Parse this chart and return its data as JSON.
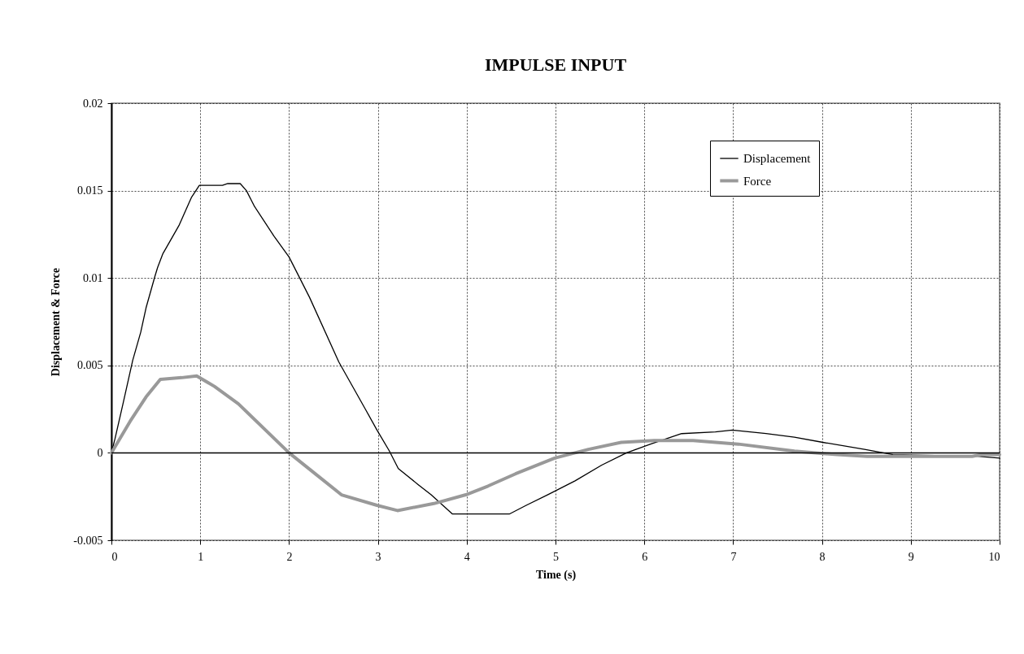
{
  "chart_data": {
    "type": "line",
    "title": "IMPULSE INPUT",
    "xlabel": "Time (s)",
    "ylabel": "Displacement & Force",
    "xlim": [
      0,
      10
    ],
    "xticks": [
      0,
      1,
      2,
      3,
      4,
      5,
      6,
      7,
      8,
      9,
      10
    ],
    "ylim": [
      -0.005,
      0.02
    ],
    "yticks": [
      -0.005,
      0,
      0.005,
      0.01,
      0.015,
      0.02
    ],
    "grid": true,
    "legend": "top right",
    "marker": "none",
    "ref_lines": [
      {
        "axis": "y",
        "value": 0,
        "color": "#000000"
      }
    ],
    "series": [
      {
        "name": "Displacement",
        "color": "#000000",
        "x": [
          0,
          0.04,
          0.13,
          0.24,
          0.33,
          0.39,
          0.49,
          0.52,
          0.58,
          0.76,
          0.9,
          0.99,
          1.25,
          1.31,
          1.45,
          1.52,
          1.61,
          1.83,
          2.0,
          2.23,
          2.56,
          2.87,
          2.99,
          3.13,
          3.23,
          3.45,
          3.6,
          3.84,
          4.48,
          4.67,
          4.91,
          5.22,
          5.52,
          5.8,
          6.07,
          6.42,
          6.8,
          6.99,
          7.37,
          7.69,
          8.01,
          8.48,
          8.8,
          9.75,
          10
        ],
        "values": [
          0,
          0.0008,
          0.0028,
          0.0053,
          0.0069,
          0.0083,
          0.0101,
          0.0106,
          0.0114,
          0.013,
          0.0146,
          0.0153,
          0.0153,
          0.0154,
          0.0154,
          0.015,
          0.0141,
          0.0124,
          0.0112,
          0.0089,
          0.0052,
          0.0024,
          0.0013,
          0.0001,
          -0.0009,
          -0.0018,
          -0.0024,
          -0.0035,
          -0.0035,
          -0.003,
          -0.0024,
          -0.0016,
          -0.0007,
          0,
          0.0005,
          0.0011,
          0.0012,
          0.0013,
          0.0011,
          0.0009,
          0.0006,
          0.0002,
          -0.0001,
          -0.0002,
          -0.0003
        ]
      },
      {
        "name": "Force",
        "color": "#999999",
        "x": [
          0,
          0.21,
          0.39,
          0.55,
          0.79,
          0.96,
          1.16,
          1.43,
          2.0,
          2.32,
          2.59,
          2.99,
          3.22,
          3.63,
          3.99,
          4.24,
          4.55,
          4.99,
          5.37,
          5.74,
          6.11,
          6.55,
          7.06,
          7.69,
          8.17,
          8.51,
          9.69,
          9.8,
          10
        ],
        "values": [
          0,
          0.0018,
          0.0032,
          0.0042,
          0.0043,
          0.0044,
          0.0038,
          0.0028,
          0,
          -0.0013,
          -0.0024,
          -0.003,
          -0.0033,
          -0.0029,
          -0.0024,
          -0.0019,
          -0.0012,
          -0.0003,
          0.0002,
          0.0006,
          0.0007,
          0.0007,
          0.0005,
          0.0001,
          -0.0001,
          -0.0002,
          -0.0002,
          -0.0001,
          -0.0001
        ]
      }
    ]
  }
}
